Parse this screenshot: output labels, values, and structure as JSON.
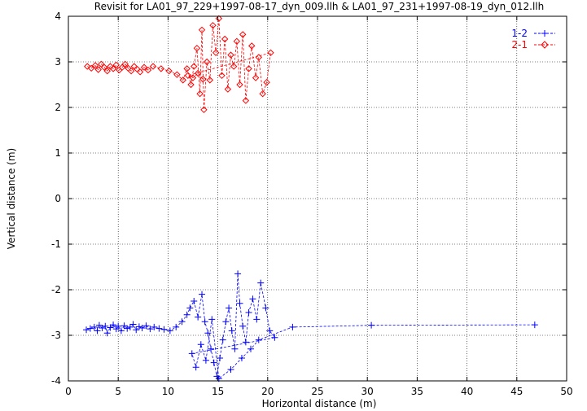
{
  "chart_data": {
    "type": "scatter",
    "title": "Revisit for LA01_97_229+1997-08-17_dyn_009.llh & LA01_97_231+1997-08-19_dyn_012.llh",
    "xlabel": "Horizontal distance (m)",
    "ylabel": "Vertical distance (m)",
    "xlim": [
      0,
      50
    ],
    "ylim": [
      -4,
      4
    ],
    "xticks": [
      "0",
      "5",
      "10",
      "15",
      "20",
      "25",
      "30",
      "35",
      "40",
      "45",
      "50"
    ],
    "yticks": [
      "-4",
      "-3",
      "-2",
      "-1",
      "0",
      "1",
      "2",
      "3",
      "4"
    ],
    "grid": true,
    "legend_position": "top-right",
    "series": [
      {
        "name": "1-2",
        "color": "#0000ff",
        "marker": "plus",
        "line": "dashed",
        "points": [
          [
            1.8,
            -2.88
          ],
          [
            2.2,
            -2.85
          ],
          [
            2.6,
            -2.82
          ],
          [
            2.9,
            -2.9
          ],
          [
            3.1,
            -2.78
          ],
          [
            3.4,
            -2.84
          ],
          [
            3.7,
            -2.8
          ],
          [
            3.9,
            -2.95
          ],
          [
            4.2,
            -2.83
          ],
          [
            4.5,
            -2.77
          ],
          [
            4.8,
            -2.86
          ],
          [
            5.0,
            -2.8
          ],
          [
            5.3,
            -2.9
          ],
          [
            5.6,
            -2.79
          ],
          [
            5.9,
            -2.85
          ],
          [
            6.2,
            -2.82
          ],
          [
            6.5,
            -2.76
          ],
          [
            6.8,
            -2.88
          ],
          [
            7.1,
            -2.81
          ],
          [
            7.4,
            -2.84
          ],
          [
            7.8,
            -2.79
          ],
          [
            8.2,
            -2.86
          ],
          [
            8.6,
            -2.82
          ],
          [
            9.1,
            -2.85
          ],
          [
            9.6,
            -2.87
          ],
          [
            10.2,
            -2.9
          ],
          [
            10.8,
            -2.82
          ],
          [
            11.4,
            -2.7
          ],
          [
            11.9,
            -2.55
          ],
          [
            12.2,
            -2.4
          ],
          [
            12.6,
            -2.25
          ],
          [
            13.0,
            -2.6
          ],
          [
            13.4,
            -2.1
          ],
          [
            13.7,
            -2.7
          ],
          [
            14.0,
            -2.95
          ],
          [
            14.3,
            -3.3
          ],
          [
            14.6,
            -3.6
          ],
          [
            14.9,
            -3.9
          ],
          [
            15.2,
            -3.5
          ],
          [
            15.5,
            -3.1
          ],
          [
            15.8,
            -2.7
          ],
          [
            16.1,
            -2.4
          ],
          [
            16.4,
            -2.9
          ],
          [
            16.7,
            -3.3
          ],
          [
            17.0,
            -1.65
          ],
          [
            17.2,
            -2.3
          ],
          [
            17.5,
            -2.8
          ],
          [
            17.8,
            -3.15
          ],
          [
            18.1,
            -2.5
          ],
          [
            18.5,
            -2.2
          ],
          [
            18.9,
            -2.65
          ],
          [
            19.3,
            -1.85
          ],
          [
            19.8,
            -2.4
          ],
          [
            20.2,
            -2.9
          ],
          [
            20.7,
            -3.05
          ],
          [
            12.4,
            -3.4
          ],
          [
            12.8,
            -3.7
          ],
          [
            13.3,
            -3.2
          ],
          [
            13.8,
            -3.55
          ],
          [
            14.4,
            -2.65
          ],
          [
            15.1,
            -3.95
          ],
          [
            16.3,
            -3.75
          ],
          [
            17.4,
            -3.5
          ],
          [
            18.3,
            -3.3
          ],
          [
            19.1,
            -3.1
          ],
          [
            22.5,
            -2.82
          ],
          [
            30.4,
            -2.78
          ],
          [
            46.8,
            -2.77
          ]
        ]
      },
      {
        "name": "2-1",
        "color": "#ff0000",
        "marker": "diamond",
        "line": "dashed",
        "points": [
          [
            1.9,
            2.9
          ],
          [
            2.3,
            2.86
          ],
          [
            2.7,
            2.92
          ],
          [
            3.0,
            2.83
          ],
          [
            3.3,
            2.95
          ],
          [
            3.6,
            2.88
          ],
          [
            3.9,
            2.8
          ],
          [
            4.2,
            2.9
          ],
          [
            4.5,
            2.85
          ],
          [
            4.8,
            2.93
          ],
          [
            5.1,
            2.82
          ],
          [
            5.4,
            2.88
          ],
          [
            5.7,
            2.95
          ],
          [
            6.0,
            2.86
          ],
          [
            6.3,
            2.8
          ],
          [
            6.6,
            2.9
          ],
          [
            6.9,
            2.84
          ],
          [
            7.2,
            2.78
          ],
          [
            7.6,
            2.88
          ],
          [
            8.0,
            2.82
          ],
          [
            8.5,
            2.9
          ],
          [
            9.3,
            2.85
          ],
          [
            10.1,
            2.8
          ],
          [
            10.9,
            2.72
          ],
          [
            11.5,
            2.6
          ],
          [
            11.9,
            2.85
          ],
          [
            12.3,
            2.5
          ],
          [
            12.6,
            2.9
          ],
          [
            12.9,
            3.3
          ],
          [
            13.2,
            2.3
          ],
          [
            13.4,
            3.7
          ],
          [
            13.6,
            1.95
          ],
          [
            13.9,
            3.0
          ],
          [
            14.2,
            2.6
          ],
          [
            14.5,
            3.8
          ],
          [
            14.8,
            3.2
          ],
          [
            15.1,
            3.95
          ],
          [
            15.4,
            2.7
          ],
          [
            15.7,
            3.5
          ],
          [
            16.0,
            2.4
          ],
          [
            16.3,
            3.15
          ],
          [
            16.6,
            2.9
          ],
          [
            16.9,
            3.45
          ],
          [
            17.2,
            2.5
          ],
          [
            17.5,
            3.6
          ],
          [
            17.8,
            2.15
          ],
          [
            18.1,
            2.85
          ],
          [
            18.4,
            3.35
          ],
          [
            18.8,
            2.65
          ],
          [
            19.1,
            3.1
          ],
          [
            19.5,
            2.3
          ],
          [
            19.9,
            2.55
          ],
          [
            20.3,
            3.2
          ],
          [
            12.0,
            2.7
          ],
          [
            12.5,
            2.65
          ],
          [
            13.0,
            2.75
          ],
          [
            13.5,
            2.62
          ]
        ]
      }
    ]
  }
}
